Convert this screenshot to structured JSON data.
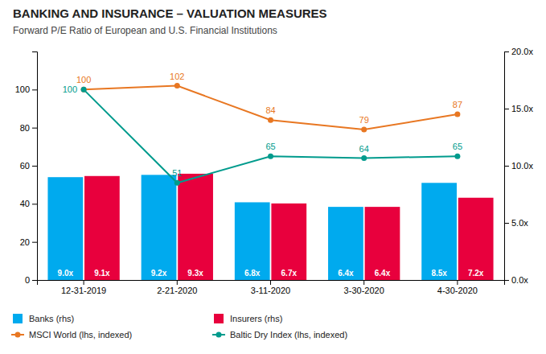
{
  "chart_data": {
    "type": "bar",
    "title": "BANKING AND INSURANCE – VALUATION MEASURES",
    "subtitle": "Forward P/E Ratio of European and U.S. Financial Institutions",
    "categories": [
      "12-31-2019",
      "2-21-2020",
      "3-11-2020",
      "3-30-2020",
      "4-30-2020"
    ],
    "series": [
      {
        "name": "Banks (rhs)",
        "type": "bar",
        "axis": "y2",
        "color": "#00AAEE",
        "values": [
          9.0,
          9.2,
          6.8,
          6.4,
          8.5
        ],
        "value_labels": [
          "9.0x",
          "9.2x",
          "6.8x",
          "6.4x",
          "8.5x"
        ]
      },
      {
        "name": "Insurers (rhs)",
        "type": "bar",
        "axis": "y2",
        "color": "#E8003D",
        "values": [
          9.1,
          9.3,
          6.7,
          6.4,
          7.2
        ],
        "value_labels": [
          "9.1x",
          "9.3x",
          "6.7x",
          "6.4x",
          "7.2x"
        ]
      },
      {
        "name": "MSCI World (lhs, indexed)",
        "type": "line",
        "color": "#E87722",
        "marker": "circle",
        "values": [
          100,
          102,
          84,
          79,
          87
        ]
      },
      {
        "name": "Baltic Dry Index (lhs, indexed)",
        "type": "line",
        "color": "#009B8D",
        "marker": "circle",
        "values": [
          100,
          51,
          65,
          64,
          65
        ]
      }
    ],
    "ylim": [
      0,
      120
    ],
    "yticks": [
      0,
      20,
      40,
      60,
      80,
      100
    ],
    "y2lim": [
      0,
      20
    ],
    "y2ticks": [
      {
        "value": 0,
        "label": "0.0x"
      },
      {
        "value": 5,
        "label": "5.0x"
      },
      {
        "value": 10,
        "label": "10.0x"
      },
      {
        "value": 15,
        "label": "15.0x"
      },
      {
        "value": 20,
        "label": "20.0x"
      }
    ],
    "data_labels": true,
    "grid": false,
    "legend": "bottom"
  }
}
